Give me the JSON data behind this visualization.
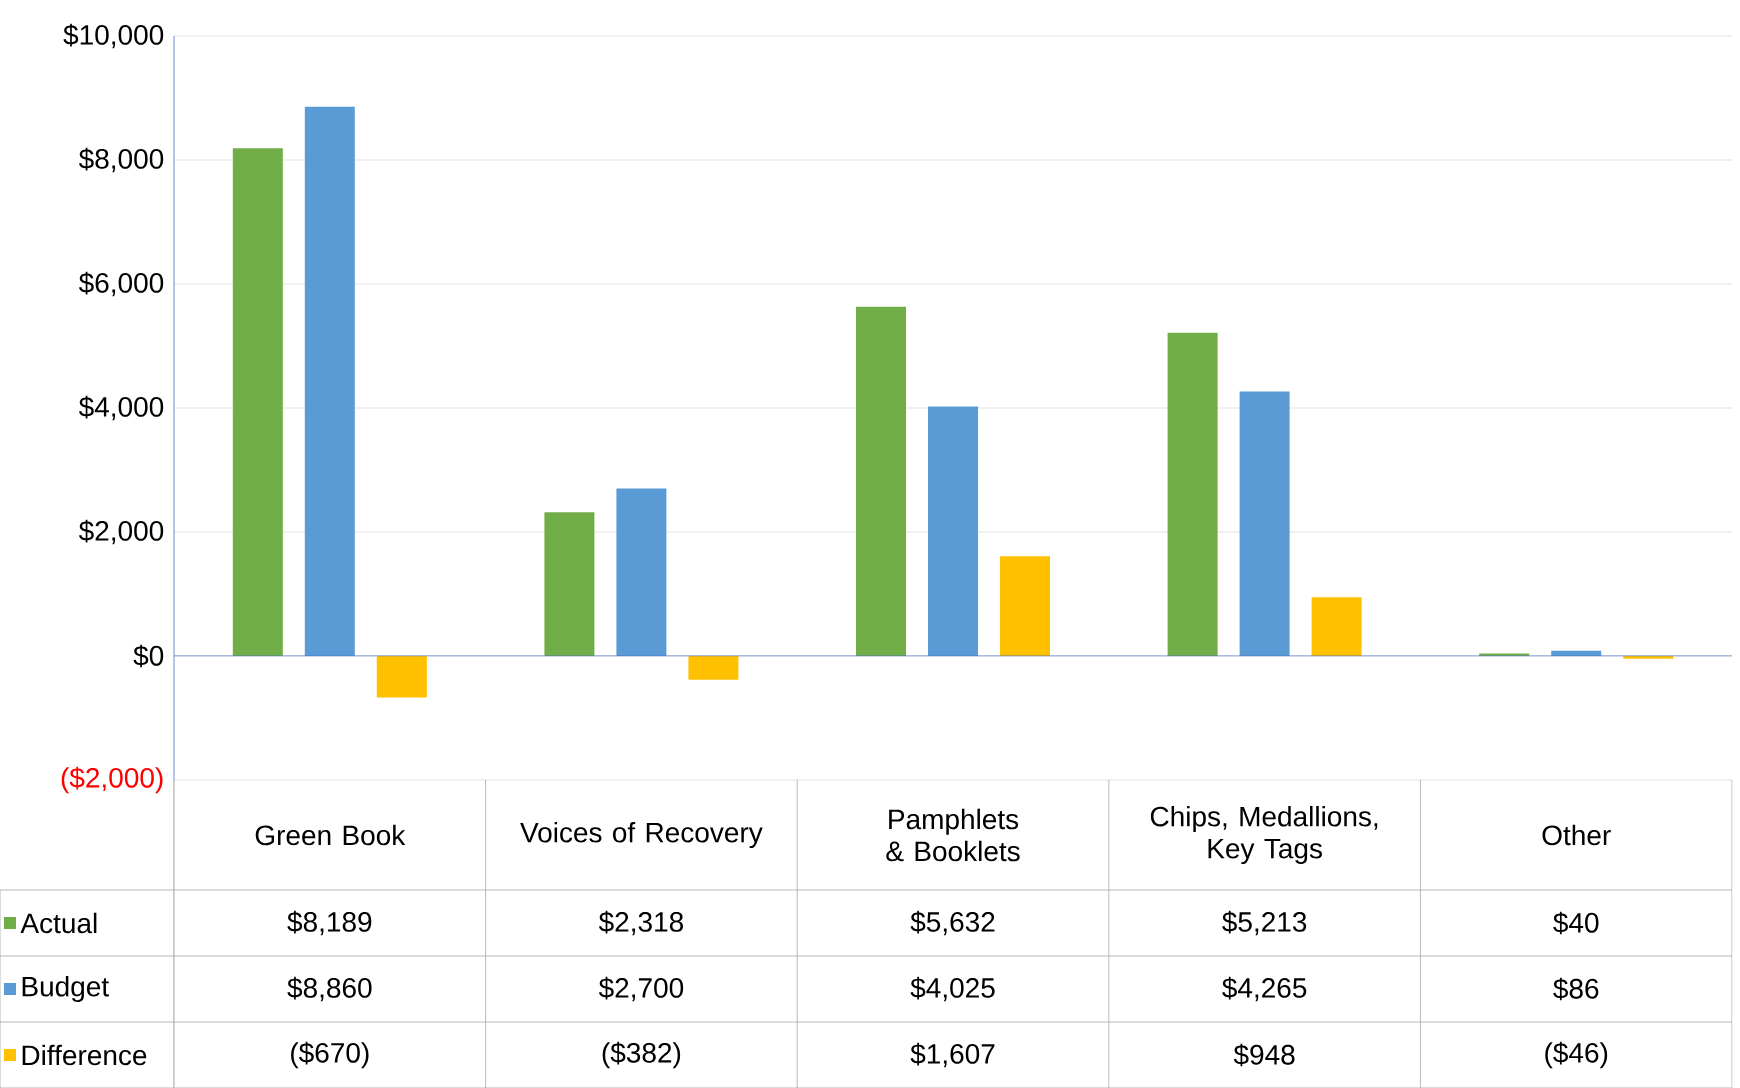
{
  "chart_data": {
    "type": "bar",
    "categories": [
      "Green Book",
      "Voices of Recovery",
      "Pamphlets & Booklets",
      "Chips, Medallions, Key Tags",
      "Other"
    ],
    "series": [
      {
        "name": "Actual",
        "color": "#70ad47",
        "values": [
          8189,
          2318,
          5632,
          5213,
          40
        ],
        "value_labels": [
          "$8,189",
          "$2,318",
          "$5,632",
          "$5,213",
          "$40"
        ]
      },
      {
        "name": "Budget",
        "color": "#5b9bd5",
        "values": [
          8860,
          2700,
          4025,
          4265,
          86
        ],
        "value_labels": [
          "$8,860",
          "$2,700",
          "$4,025",
          "$4,265",
          "$86"
        ]
      },
      {
        "name": "Difference",
        "color": "#ffc000",
        "values": [
          -670,
          -382,
          1607,
          948,
          -46
        ],
        "value_labels": [
          "($670)",
          "($382)",
          "$1,607",
          "$948",
          "($46)"
        ]
      }
    ],
    "ylim": [
      -2000,
      10000
    ],
    "yticks": [
      {
        "value": -2000,
        "label": "($2,000)"
      },
      {
        "value": 0,
        "label": "$0"
      },
      {
        "value": 2000,
        "label": "$2,000"
      },
      {
        "value": 4000,
        "label": "$4,000"
      },
      {
        "value": 6000,
        "label": "$6,000"
      },
      {
        "value": 8000,
        "label": "$8,000"
      },
      {
        "value": 10000,
        "label": "$10,000"
      }
    ],
    "grid": "y",
    "legend": "bottom left",
    "ref_lines": [
      {
        "axis": "y",
        "value": 0,
        "color": "#4472c4"
      }
    ]
  }
}
